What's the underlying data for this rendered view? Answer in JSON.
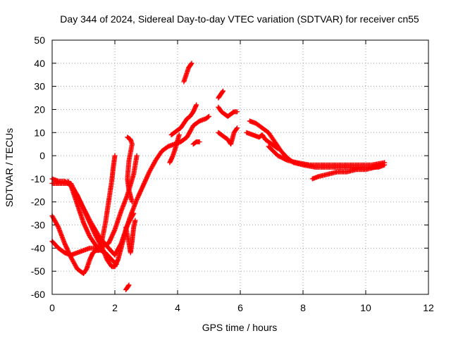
{
  "chart_data": {
    "type": "scatter",
    "title": "Day 344 of 2024, Sidereal Day-to-day VTEC variation (SDTVAR) for receiver cn55",
    "xlabel": "GPS time / hours",
    "ylabel": "SDTVAR / TECUs",
    "xlim": [
      0,
      12
    ],
    "ylim": [
      -60,
      50
    ],
    "xticks": [
      0,
      2,
      4,
      6,
      8,
      10,
      12
    ],
    "yticks": [
      -60,
      -50,
      -40,
      -30,
      -20,
      -10,
      0,
      10,
      20,
      30,
      40,
      50
    ],
    "grid": true,
    "marker": "plus",
    "color": "#ff0000",
    "series": [
      {
        "name": "track-1",
        "points": [
          [
            0.0,
            -12
          ],
          [
            0.3,
            -12
          ],
          [
            0.6,
            -12
          ],
          [
            0.9,
            -20
          ],
          [
            1.2,
            -28
          ],
          [
            1.5,
            -35
          ],
          [
            1.8,
            -40
          ],
          [
            2.0,
            -43
          ],
          [
            2.2,
            -38
          ],
          [
            2.4,
            -30
          ],
          [
            2.6,
            -25
          ]
        ]
      },
      {
        "name": "track-2",
        "points": [
          [
            0.0,
            -10
          ],
          [
            0.2,
            -11
          ],
          [
            0.4,
            -11
          ],
          [
            0.6,
            -13
          ],
          [
            0.8,
            -21
          ],
          [
            1.0,
            -29
          ],
          [
            1.2,
            -35
          ],
          [
            1.4,
            -39
          ],
          [
            1.55,
            -41
          ],
          [
            1.7,
            -42
          ],
          [
            1.9,
            -45
          ],
          [
            2.05,
            -47
          ]
        ]
      },
      {
        "name": "track-3",
        "points": [
          [
            0.0,
            -26
          ],
          [
            0.2,
            -31
          ],
          [
            0.4,
            -38
          ],
          [
            0.6,
            -44
          ],
          [
            0.8,
            -49
          ],
          [
            1.0,
            -51
          ],
          [
            1.1,
            -49
          ],
          [
            1.2,
            -45
          ],
          [
            1.3,
            -42
          ],
          [
            1.4,
            -41
          ],
          [
            1.5,
            -41
          ],
          [
            1.6,
            -36
          ],
          [
            1.7,
            -29
          ],
          [
            1.8,
            -20
          ],
          [
            1.9,
            -11
          ],
          [
            1.95,
            -5
          ],
          [
            2.0,
            0
          ]
        ]
      },
      {
        "name": "track-4",
        "points": [
          [
            0.0,
            -37
          ],
          [
            0.2,
            -40
          ],
          [
            0.4,
            -42
          ],
          [
            0.6,
            -43
          ],
          [
            0.8,
            -42
          ],
          [
            1.0,
            -41
          ],
          [
            1.2,
            -40
          ],
          [
            1.4,
            -40
          ],
          [
            1.6,
            -39
          ],
          [
            1.8,
            -38
          ],
          [
            2.0,
            -32
          ],
          [
            2.2,
            -24
          ],
          [
            2.4,
            -17
          ],
          [
            2.6,
            -8
          ],
          [
            2.7,
            0
          ]
        ]
      },
      {
        "name": "track-5",
        "points": [
          [
            0.5,
            -11
          ],
          [
            0.8,
            -17
          ],
          [
            1.0,
            -23
          ],
          [
            1.2,
            -29
          ],
          [
            1.4,
            -35
          ],
          [
            1.6,
            -40
          ],
          [
            1.75,
            -45
          ],
          [
            1.9,
            -48
          ],
          [
            2.0,
            -48
          ],
          [
            2.1,
            -45
          ],
          [
            2.2,
            -40
          ],
          [
            2.35,
            -32
          ],
          [
            2.5,
            -26
          ],
          [
            2.7,
            -19
          ],
          [
            2.9,
            -13
          ],
          [
            3.1,
            -7
          ],
          [
            3.3,
            -2
          ],
          [
            3.5,
            2
          ],
          [
            3.7,
            4
          ],
          [
            3.9,
            5
          ],
          [
            4.1,
            6
          ],
          [
            4.3,
            8
          ],
          [
            4.5,
            13
          ],
          [
            4.7,
            15
          ],
          [
            4.9,
            16
          ],
          [
            5.0,
            17
          ]
        ]
      },
      {
        "name": "track-6",
        "points": [
          [
            2.35,
            -31
          ],
          [
            2.45,
            -38
          ],
          [
            2.5,
            -42
          ],
          [
            2.55,
            -37
          ],
          [
            2.6,
            -31
          ],
          [
            2.65,
            -28
          ]
        ]
      },
      {
        "name": "track-7",
        "points": [
          [
            2.35,
            -58
          ],
          [
            2.4,
            -57
          ],
          [
            2.45,
            -56
          ]
        ]
      },
      {
        "name": "track-8",
        "points": [
          [
            2.4,
            8
          ],
          [
            2.5,
            7
          ],
          [
            2.55,
            5
          ],
          [
            2.45,
            -2
          ],
          [
            2.4,
            -10
          ],
          [
            2.45,
            -15
          ],
          [
            2.55,
            -20
          ]
        ]
      },
      {
        "name": "track-9",
        "points": [
          [
            3.75,
            -3
          ],
          [
            3.85,
            0
          ],
          [
            3.95,
            4
          ],
          [
            4.05,
            9
          ]
        ]
      },
      {
        "name": "track-10",
        "points": [
          [
            3.8,
            9
          ],
          [
            3.9,
            10
          ],
          [
            4.0,
            11
          ],
          [
            4.1,
            12
          ],
          [
            4.2,
            14
          ],
          [
            4.3,
            16
          ],
          [
            4.4,
            17
          ],
          [
            4.5,
            19
          ],
          [
            4.6,
            22
          ]
        ]
      },
      {
        "name": "track-11",
        "points": [
          [
            4.5,
            5
          ],
          [
            4.6,
            6
          ],
          [
            4.7,
            6
          ]
        ]
      },
      {
        "name": "track-12",
        "points": [
          [
            4.2,
            32
          ],
          [
            4.25,
            34
          ],
          [
            4.3,
            36
          ],
          [
            4.35,
            38
          ],
          [
            4.4,
            39
          ],
          [
            4.45,
            40
          ]
        ]
      },
      {
        "name": "track-13",
        "points": [
          [
            5.3,
            25
          ],
          [
            5.35,
            26
          ],
          [
            5.4,
            27
          ],
          [
            5.45,
            28
          ]
        ]
      },
      {
        "name": "track-14",
        "points": [
          [
            5.3,
            21
          ],
          [
            5.4,
            19
          ],
          [
            5.5,
            18
          ],
          [
            5.6,
            17
          ],
          [
            5.7,
            18
          ],
          [
            5.8,
            19
          ],
          [
            5.9,
            19
          ]
        ]
      },
      {
        "name": "track-15",
        "points": [
          [
            5.3,
            10
          ],
          [
            5.4,
            9
          ],
          [
            5.5,
            8
          ],
          [
            5.6,
            7
          ],
          [
            5.7,
            5
          ],
          [
            5.8,
            10
          ],
          [
            5.9,
            12
          ]
        ]
      },
      {
        "name": "track-16",
        "points": [
          [
            6.2,
            10
          ],
          [
            6.4,
            9
          ],
          [
            6.6,
            8
          ],
          [
            6.7,
            9
          ],
          [
            6.8,
            7
          ],
          [
            7.0,
            5
          ],
          [
            7.2,
            3
          ]
        ]
      },
      {
        "name": "track-17",
        "points": [
          [
            6.3,
            15
          ],
          [
            6.5,
            14
          ],
          [
            6.7,
            12
          ],
          [
            6.9,
            10
          ],
          [
            7.1,
            6
          ],
          [
            7.3,
            2
          ],
          [
            7.5,
            -1
          ],
          [
            7.7,
            -3
          ],
          [
            8.0,
            -4
          ],
          [
            8.4,
            -5
          ],
          [
            8.8,
            -5
          ],
          [
            9.2,
            -5
          ],
          [
            9.6,
            -5
          ],
          [
            10.0,
            -5
          ],
          [
            10.4,
            -5
          ],
          [
            10.6,
            -4
          ]
        ]
      },
      {
        "name": "track-18",
        "points": [
          [
            6.9,
            4
          ],
          [
            7.2,
            0
          ],
          [
            7.5,
            -2
          ],
          [
            7.8,
            -3
          ],
          [
            8.2,
            -4
          ],
          [
            8.6,
            -4
          ],
          [
            9.0,
            -4
          ],
          [
            9.4,
            -4
          ],
          [
            9.8,
            -4
          ],
          [
            10.2,
            -4
          ],
          [
            10.6,
            -3
          ]
        ]
      },
      {
        "name": "track-19",
        "points": [
          [
            8.3,
            -10
          ],
          [
            8.5,
            -9
          ],
          [
            8.8,
            -8
          ],
          [
            9.1,
            -7
          ],
          [
            9.4,
            -7
          ],
          [
            9.7,
            -6
          ],
          [
            10.0,
            -6
          ],
          [
            10.3,
            -5
          ],
          [
            10.5,
            -4
          ]
        ]
      }
    ]
  }
}
